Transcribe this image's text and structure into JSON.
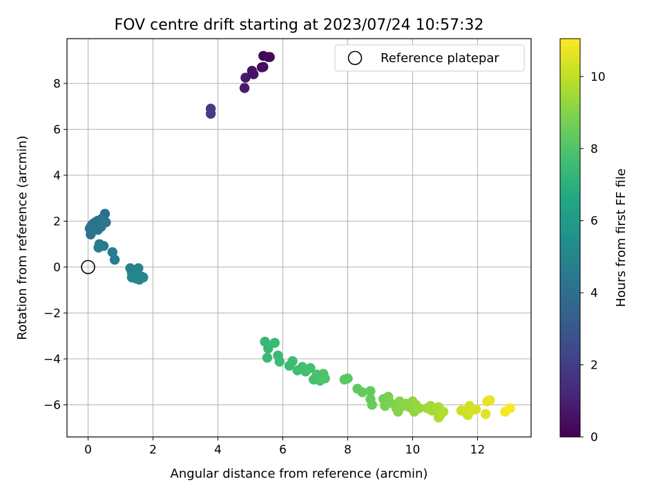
{
  "chart_data": {
    "type": "scatter",
    "title": "FOV centre drift starting at 2023/07/24 10:57:32",
    "xlabel": "Angular distance from reference (arcmin)",
    "ylabel": "Rotation from reference (arcmin)",
    "xlim": [
      -0.65,
      13.65
    ],
    "ylim": [
      -7.4,
      9.95
    ],
    "xticks": [
      0,
      2,
      4,
      6,
      8,
      10,
      12
    ],
    "yticks": [
      -6,
      -4,
      -2,
      0,
      2,
      4,
      6,
      8
    ],
    "grid": true,
    "legend": {
      "position": "top-right",
      "entries": [
        "Reference platepar"
      ]
    },
    "reference_point": {
      "x": 0,
      "y": 0,
      "label": "Reference platepar"
    },
    "colorbar": {
      "label": "Hours from first FF file",
      "min": 0,
      "max": 11.05,
      "ticks": [
        0,
        2,
        4,
        6,
        8,
        10
      ],
      "colormap": "viridis"
    },
    "points": [
      {
        "x": 5.4,
        "y": 9.2,
        "c": 0.1
      },
      {
        "x": 5.55,
        "y": 9.15,
        "c": 0.2
      },
      {
        "x": 5.6,
        "y": 9.15,
        "c": 0.25
      },
      {
        "x": 5.35,
        "y": 8.7,
        "c": 0.4
      },
      {
        "x": 5.4,
        "y": 8.72,
        "c": 0.45
      },
      {
        "x": 5.05,
        "y": 8.55,
        "c": 0.55
      },
      {
        "x": 5.1,
        "y": 8.4,
        "c": 0.6
      },
      {
        "x": 4.85,
        "y": 8.25,
        "c": 0.7
      },
      {
        "x": 4.82,
        "y": 7.8,
        "c": 0.8
      },
      {
        "x": 3.78,
        "y": 6.9,
        "c": 1.9
      },
      {
        "x": 3.78,
        "y": 6.68,
        "c": 2.0
      },
      {
        "x": 0.52,
        "y": 2.32,
        "c": 4.0
      },
      {
        "x": 0.42,
        "y": 2.1,
        "c": 4.05
      },
      {
        "x": 0.3,
        "y": 2.02,
        "c": 4.1
      },
      {
        "x": 0.22,
        "y": 1.95,
        "c": 4.1
      },
      {
        "x": 0.15,
        "y": 1.88,
        "c": 4.15
      },
      {
        "x": 0.55,
        "y": 1.95,
        "c": 4.15
      },
      {
        "x": 0.1,
        "y": 1.8,
        "c": 4.2
      },
      {
        "x": 0.38,
        "y": 1.82,
        "c": 4.2
      },
      {
        "x": 0.05,
        "y": 1.68,
        "c": 4.25
      },
      {
        "x": 0.2,
        "y": 1.7,
        "c": 4.25
      },
      {
        "x": 0.3,
        "y": 1.62,
        "c": 4.3
      },
      {
        "x": 0.12,
        "y": 1.55,
        "c": 4.3
      },
      {
        "x": 0.08,
        "y": 1.42,
        "c": 4.35
      },
      {
        "x": 0.4,
        "y": 1.75,
        "c": 4.35
      },
      {
        "x": 0.48,
        "y": 2.0,
        "c": 4.4
      },
      {
        "x": 0.35,
        "y": 1.0,
        "c": 4.5
      },
      {
        "x": 0.32,
        "y": 0.85,
        "c": 4.55
      },
      {
        "x": 0.48,
        "y": 0.92,
        "c": 4.55
      },
      {
        "x": 0.75,
        "y": 0.65,
        "c": 4.6
      },
      {
        "x": 0.82,
        "y": 0.32,
        "c": 4.65
      },
      {
        "x": 1.3,
        "y": -0.05,
        "c": 4.85
      },
      {
        "x": 1.55,
        "y": -0.05,
        "c": 4.85
      },
      {
        "x": 1.35,
        "y": -0.25,
        "c": 4.9
      },
      {
        "x": 1.42,
        "y": -0.35,
        "c": 4.9
      },
      {
        "x": 1.55,
        "y": -0.32,
        "c": 4.95
      },
      {
        "x": 1.65,
        "y": -0.42,
        "c": 4.95
      },
      {
        "x": 1.35,
        "y": -0.45,
        "c": 5.0
      },
      {
        "x": 1.48,
        "y": -0.5,
        "c": 5.0
      },
      {
        "x": 1.58,
        "y": -0.55,
        "c": 5.05
      },
      {
        "x": 1.7,
        "y": -0.45,
        "c": 5.05
      },
      {
        "x": 5.45,
        "y": -3.25,
        "c": 7.3
      },
      {
        "x": 5.55,
        "y": -3.55,
        "c": 7.35
      },
      {
        "x": 5.75,
        "y": -3.3,
        "c": 7.4
      },
      {
        "x": 5.52,
        "y": -3.95,
        "c": 7.45
      },
      {
        "x": 5.85,
        "y": -3.85,
        "c": 7.5
      },
      {
        "x": 5.9,
        "y": -4.12,
        "c": 7.5
      },
      {
        "x": 6.2,
        "y": -4.3,
        "c": 7.55
      },
      {
        "x": 6.3,
        "y": -4.1,
        "c": 7.6
      },
      {
        "x": 6.45,
        "y": -4.5,
        "c": 7.65
      },
      {
        "x": 6.6,
        "y": -4.35,
        "c": 7.7
      },
      {
        "x": 6.7,
        "y": -4.55,
        "c": 7.7
      },
      {
        "x": 6.85,
        "y": -4.4,
        "c": 7.75
      },
      {
        "x": 6.95,
        "y": -4.9,
        "c": 7.8
      },
      {
        "x": 7.05,
        "y": -4.68,
        "c": 7.85
      },
      {
        "x": 7.15,
        "y": -4.95,
        "c": 7.85
      },
      {
        "x": 7.25,
        "y": -4.65,
        "c": 7.9
      },
      {
        "x": 7.3,
        "y": -4.85,
        "c": 7.95
      },
      {
        "x": 7.9,
        "y": -4.9,
        "c": 8.2
      },
      {
        "x": 8.0,
        "y": -4.85,
        "c": 8.2
      },
      {
        "x": 8.3,
        "y": -5.3,
        "c": 8.3
      },
      {
        "x": 8.45,
        "y": -5.45,
        "c": 8.35
      },
      {
        "x": 8.7,
        "y": -5.4,
        "c": 8.4
      },
      {
        "x": 8.7,
        "y": -5.75,
        "c": 8.45
      },
      {
        "x": 8.75,
        "y": -6.0,
        "c": 8.5
      },
      {
        "x": 9.1,
        "y": -5.75,
        "c": 8.7
      },
      {
        "x": 9.25,
        "y": -5.65,
        "c": 8.75
      },
      {
        "x": 9.15,
        "y": -6.05,
        "c": 8.8
      },
      {
        "x": 9.3,
        "y": -5.9,
        "c": 8.85
      },
      {
        "x": 9.45,
        "y": -6.0,
        "c": 8.9
      },
      {
        "x": 9.5,
        "y": -6.15,
        "c": 8.95
      },
      {
        "x": 9.55,
        "y": -6.3,
        "c": 9.0
      },
      {
        "x": 9.6,
        "y": -5.85,
        "c": 9.0
      },
      {
        "x": 9.7,
        "y": -6.05,
        "c": 9.05
      },
      {
        "x": 9.8,
        "y": -5.95,
        "c": 9.1
      },
      {
        "x": 9.9,
        "y": -6.1,
        "c": 9.15
      },
      {
        "x": 10.0,
        "y": -5.85,
        "c": 9.2
      },
      {
        "x": 10.05,
        "y": -6.3,
        "c": 9.25
      },
      {
        "x": 10.1,
        "y": -6.0,
        "c": 9.3
      },
      {
        "x": 10.2,
        "y": -6.15,
        "c": 9.35
      },
      {
        "x": 10.45,
        "y": -6.15,
        "c": 9.45
      },
      {
        "x": 10.55,
        "y": -6.05,
        "c": 9.5
      },
      {
        "x": 10.6,
        "y": -6.25,
        "c": 9.55
      },
      {
        "x": 10.8,
        "y": -6.1,
        "c": 9.65
      },
      {
        "x": 10.85,
        "y": -6.45,
        "c": 9.7
      },
      {
        "x": 10.8,
        "y": -6.55,
        "c": 9.7
      },
      {
        "x": 10.95,
        "y": -6.3,
        "c": 9.75
      },
      {
        "x": 11.5,
        "y": -6.25,
        "c": 10.15
      },
      {
        "x": 11.65,
        "y": -6.35,
        "c": 10.2
      },
      {
        "x": 11.7,
        "y": -6.45,
        "c": 10.2
      },
      {
        "x": 11.75,
        "y": -6.05,
        "c": 10.25
      },
      {
        "x": 11.8,
        "y": -6.25,
        "c": 10.3
      },
      {
        "x": 11.95,
        "y": -6.2,
        "c": 10.35
      },
      {
        "x": 12.25,
        "y": -6.4,
        "c": 10.55
      },
      {
        "x": 12.3,
        "y": -5.85,
        "c": 10.6
      },
      {
        "x": 12.38,
        "y": -5.8,
        "c": 10.65
      },
      {
        "x": 12.85,
        "y": -6.3,
        "c": 10.9
      },
      {
        "x": 13.0,
        "y": -6.15,
        "c": 11.0
      }
    ]
  }
}
